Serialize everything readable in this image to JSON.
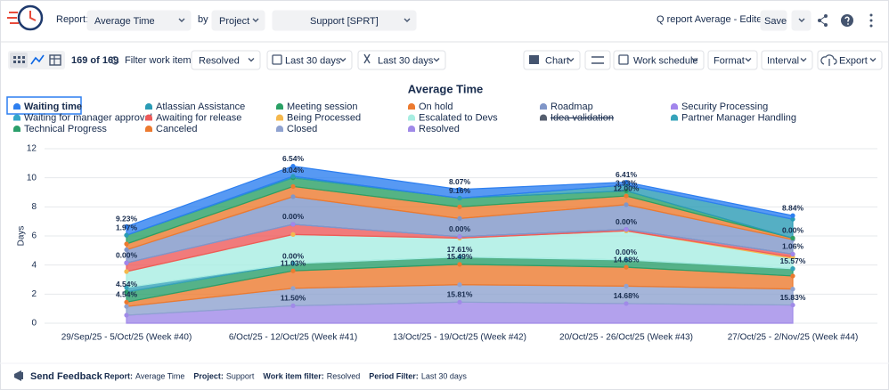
{
  "ui": {
    "report_label": "Report:",
    "report": "Average Time",
    "by": "by",
    "group": "Project",
    "project": "Support [SPRT]",
    "report_name": "Q report Average - Edited",
    "save": "Save",
    "count": "169 of 169",
    "filter_label": "Filter work items:",
    "filter": "Resolved",
    "period": "Last 30 days",
    "period2": "Last 30 days",
    "toolbar": [
      "Chart",
      "Work schedule",
      "Format",
      "Interval",
      "Export"
    ],
    "feedback": "Send Feedback",
    "footer": [
      {
        "label": "Report:",
        "value": "Average Time"
      },
      {
        "label": "Project:",
        "value": "Support"
      },
      {
        "label": "Work item filter:",
        "value": "Resolved"
      },
      {
        "label": "Period Filter:",
        "value": "Last 30 days"
      }
    ]
  },
  "chart_data": {
    "type": "area",
    "stacked": true,
    "title": "Average Time",
    "ylabel": "Days",
    "categories": [
      "29/Sep/25 - 5/Oct/25 (Week #40)",
      "6/Oct/25 - 12/Oct/25 (Week #41)",
      "13/Oct/25 - 19/Oct/25 (Week #42)",
      "20/Oct/25 - 26/Oct/25 (Week #43)",
      "27/Oct/25 - 2/Nov/25 (Week #44)"
    ],
    "ylim": [
      0,
      12
    ],
    "yticks": [
      0,
      2,
      4,
      6,
      8,
      10,
      12
    ],
    "grid": true,
    "series": [
      {
        "name": "Waiting time",
        "color": "#2d7ff0",
        "values": [
          0.6,
          0.7,
          0.6,
          0.2,
          0.25
        ],
        "labels": [
          "9.23%",
          "6.54%",
          "8.07%",
          "6.41%",
          "8.84%"
        ]
      },
      {
        "name": "Atlassian Assistance",
        "color": "#2a9bb5",
        "values": [
          0,
          0.1,
          0,
          0.4,
          1.3
        ]
      },
      {
        "name": "Meeting session",
        "color": "#2aa065",
        "values": [
          0.6,
          0.6,
          0.6,
          0.35,
          0
        ],
        "labels": [
          "1.97%",
          "8.04%",
          "9.16%",
          "3.93%",
          "0.00%"
        ]
      },
      {
        "name": "On hold",
        "color": "#ec7a2f",
        "values": [
          0.4,
          0.7,
          0.8,
          0.6,
          0.1
        ],
        "labels": [
          null,
          null,
          null,
          "12.00%",
          null
        ]
      },
      {
        "name": "Roadmap",
        "color": "#8096c8",
        "values": [
          0.9,
          1.9,
          1.25,
          1.7,
          1.0
        ]
      },
      {
        "name": "Security Processing",
        "color": "#a285ec",
        "values": [
          0,
          0,
          0,
          0,
          0
        ]
      },
      {
        "name": "Waiting for manager approval",
        "color": "#33a6c8",
        "values": [
          0,
          0,
          0,
          0,
          0
        ]
      },
      {
        "name": "Awaiting for release",
        "color": "#ee5a5a",
        "values": [
          0.6,
          0.7,
          0.1,
          0.1,
          0.2
        ],
        "labels": [
          "0.00%",
          "0.00%",
          "0.00%",
          "0.00%",
          "1.06%"
        ]
      },
      {
        "name": "Being Processed",
        "color": "#f5b84d",
        "values": [
          0,
          0,
          0,
          0,
          0.1
        ]
      },
      {
        "name": "Escalated to Devs",
        "color": "#a8eee2",
        "values": [
          1.1,
          2.0,
          1.3,
          2.0,
          0.7
        ]
      },
      {
        "name": "Idea validation",
        "color": "#555e6e",
        "hidden": true,
        "values": [
          null,
          null,
          null,
          null,
          null
        ]
      },
      {
        "name": "Partner Manager Handling",
        "color": "#36a3ba",
        "values": [
          0.3,
          0,
          0,
          0,
          0
        ]
      },
      {
        "name": "Technical Progress",
        "color": "#2b9f6b",
        "values": [
          0.7,
          0.5,
          0.5,
          0.5,
          0.5
        ],
        "labels": [
          "4.54%",
          "0.00%",
          "17.61%",
          "0.00%",
          "15.57%"
        ]
      },
      {
        "name": "Canceled",
        "color": "#ec7a2f",
        "values": [
          0.3,
          1.2,
          1.4,
          1.3,
          0.9
        ],
        "labels": [
          "4.54%",
          "11.03%",
          "15.49%",
          "14.68%",
          null
        ]
      },
      {
        "name": "Closed",
        "color": "#8fa2d0",
        "values": [
          0.6,
          1.2,
          1.2,
          1.2,
          1.1
        ]
      },
      {
        "name": "Resolved",
        "color": "#a08ae8",
        "values": [
          0.55,
          1.2,
          1.45,
          1.35,
          1.25
        ],
        "labels": [
          null,
          "11.50%",
          "15.81%",
          "14.68%",
          "15.83%"
        ]
      }
    ]
  }
}
